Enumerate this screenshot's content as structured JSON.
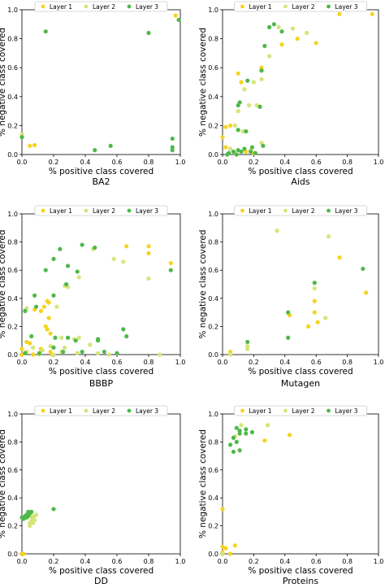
{
  "legend_labels": [
    "Layer 1",
    "Layer 2",
    "Layer 3"
  ],
  "colors": {
    "layer1": "#f5d31f",
    "layer2": "#d6e57a",
    "layer3": "#4fb84a",
    "axes": "#000000",
    "legend_border": "#cccccc"
  },
  "chart_data": [
    {
      "type": "scatter",
      "caption": "BA2",
      "xlabel": "% positive class covered",
      "ylabel": "% negative class covered",
      "xlim": [
        0,
        1
      ],
      "ylim": [
        0,
        1
      ],
      "xticks": [
        "0.0",
        "0.2",
        "0.4",
        "0.6",
        "0.8",
        "1.0"
      ],
      "yticks": [
        "0.0",
        "0.2",
        "0.4",
        "0.6",
        "0.8",
        "1.0"
      ],
      "legend": "top",
      "grid": false,
      "series": [
        {
          "name": "Layer 1",
          "points": [
            [
              0.97,
              0.96
            ],
            [
              0.05,
              0.06
            ],
            [
              0.08,
              0.065
            ]
          ]
        },
        {
          "name": "Layer 2",
          "points": [
            [
              0.0,
              0.14
            ]
          ]
        },
        {
          "name": "Layer 3",
          "points": [
            [
              0.15,
              0.85
            ],
            [
              0.8,
              0.84
            ],
            [
              0.99,
              0.93
            ],
            [
              0.0,
              0.12
            ],
            [
              0.56,
              0.06
            ],
            [
              0.46,
              0.03
            ],
            [
              0.95,
              0.11
            ],
            [
              0.95,
              0.05
            ],
            [
              0.95,
              0.03
            ]
          ]
        }
      ]
    },
    {
      "type": "scatter",
      "caption": "Aids",
      "xlabel": "% positive class covered",
      "ylabel": "% negative class covered",
      "xlim": [
        0,
        1
      ],
      "ylim": [
        0,
        1
      ],
      "xticks": [
        "0.0",
        "0.2",
        "0.4",
        "0.6",
        "0.8",
        "1.0"
      ],
      "yticks": [
        "0.0",
        "0.2",
        "0.4",
        "0.6",
        "0.8",
        "1.0"
      ],
      "legend": "top",
      "grid": false,
      "series": [
        {
          "name": "Layer 1",
          "points": [
            [
              0.96,
              0.97
            ],
            [
              0.75,
              0.97
            ],
            [
              0.6,
              0.77
            ],
            [
              0.48,
              0.8
            ],
            [
              0.38,
              0.76
            ],
            [
              0.25,
              0.6
            ],
            [
              0.1,
              0.56
            ],
            [
              0.12,
              0.5
            ],
            [
              0.05,
              0.2
            ],
            [
              0.02,
              0.19
            ],
            [
              0.0,
              0.12
            ],
            [
              0.02,
              0.05
            ],
            [
              0.03,
              0.0
            ],
            [
              0.09,
              0.0
            ],
            [
              0.15,
              0.02
            ],
            [
              0.2,
              0.01
            ]
          ]
        },
        {
          "name": "Layer 2",
          "points": [
            [
              0.54,
              0.84
            ],
            [
              0.45,
              0.87
            ],
            [
              0.36,
              0.88
            ],
            [
              0.3,
              0.68
            ],
            [
              0.25,
              0.52
            ],
            [
              0.2,
              0.5
            ],
            [
              0.14,
              0.45
            ],
            [
              0.22,
              0.34
            ],
            [
              0.17,
              0.34
            ],
            [
              0.1,
              0.3
            ],
            [
              0.08,
              0.2
            ],
            [
              0.13,
              0.16
            ],
            [
              0.25,
              0.08
            ],
            [
              0.05,
              0.04
            ],
            [
              0.18,
              0.03
            ]
          ]
        },
        {
          "name": "Layer 3",
          "points": [
            [
              0.33,
              0.9
            ],
            [
              0.3,
              0.88
            ],
            [
              0.38,
              0.85
            ],
            [
              0.27,
              0.75
            ],
            [
              0.25,
              0.58
            ],
            [
              0.16,
              0.51
            ],
            [
              0.11,
              0.36
            ],
            [
              0.1,
              0.34
            ],
            [
              0.24,
              0.33
            ],
            [
              0.1,
              0.17
            ],
            [
              0.15,
              0.16
            ],
            [
              0.26,
              0.06
            ],
            [
              0.19,
              0.05
            ],
            [
              0.14,
              0.04
            ],
            [
              0.1,
              0.03
            ],
            [
              0.12,
              0.02
            ],
            [
              0.07,
              0.02
            ],
            [
              0.04,
              0.01
            ],
            [
              0.18,
              0.02
            ],
            [
              0.21,
              0.01
            ],
            [
              0.09,
              0.0
            ],
            [
              0.03,
              0.0
            ]
          ]
        }
      ]
    },
    {
      "type": "scatter",
      "caption": "BBBP",
      "xlabel": "% positive class covered",
      "ylabel": "% negative class covered",
      "xlim": [
        0,
        1
      ],
      "ylim": [
        0,
        1
      ],
      "xticks": [
        "0.0",
        "0.2",
        "0.4",
        "0.6",
        "0.8",
        "1.0"
      ],
      "yticks": [
        "0.0",
        "0.2",
        "0.4",
        "0.6",
        "0.8",
        "1.0"
      ],
      "legend": "top",
      "grid": false,
      "series": [
        {
          "name": "Layer 1",
          "points": [
            [
              0.8,
              0.77
            ],
            [
              0.8,
              0.72
            ],
            [
              0.66,
              0.77
            ],
            [
              0.94,
              0.65
            ],
            [
              0.16,
              0.38
            ],
            [
              0.17,
              0.37
            ],
            [
              0.14,
              0.34
            ],
            [
              0.12,
              0.31
            ],
            [
              0.08,
              0.32
            ],
            [
              0.17,
              0.26
            ],
            [
              0.15,
              0.2
            ],
            [
              0.16,
              0.18
            ],
            [
              0.18,
              0.15
            ],
            [
              0.03,
              0.09
            ],
            [
              0.05,
              0.08
            ],
            [
              0.0,
              0.04
            ],
            [
              0.12,
              0.04
            ],
            [
              0.18,
              0.02
            ],
            [
              0.03,
              0.02
            ],
            [
              0.0,
              0.0
            ],
            [
              0.07,
              0.0
            ],
            [
              0.19,
              0.0
            ]
          ]
        },
        {
          "name": "Layer 2",
          "points": [
            [
              0.45,
              0.75
            ],
            [
              0.58,
              0.68
            ],
            [
              0.64,
              0.66
            ],
            [
              0.8,
              0.54
            ],
            [
              0.36,
              0.55
            ],
            [
              0.29,
              0.48
            ],
            [
              0.27,
              0.49
            ],
            [
              0.22,
              0.34
            ],
            [
              0.03,
              0.33
            ],
            [
              0.25,
              0.12
            ],
            [
              0.33,
              0.11
            ],
            [
              0.36,
              0.12
            ],
            [
              0.27,
              0.05
            ],
            [
              0.18,
              0.06
            ],
            [
              0.07,
              0.05
            ],
            [
              0.43,
              0.07
            ],
            [
              0.13,
              0.03
            ],
            [
              0.03,
              0.02
            ],
            [
              0.25,
              0.02
            ],
            [
              0.35,
              0.01
            ],
            [
              0.48,
              0.01
            ],
            [
              0.11,
              0.0
            ],
            [
              0.2,
              0.0
            ],
            [
              0.55,
              0.0
            ],
            [
              0.87,
              0.0
            ]
          ]
        },
        {
          "name": "Layer 3",
          "points": [
            [
              0.24,
              0.75
            ],
            [
              0.38,
              0.78
            ],
            [
              0.46,
              0.76
            ],
            [
              0.29,
              0.63
            ],
            [
              0.2,
              0.68
            ],
            [
              0.35,
              0.59
            ],
            [
              0.94,
              0.6
            ],
            [
              0.15,
              0.6
            ],
            [
              0.28,
              0.5
            ],
            [
              0.2,
              0.42
            ],
            [
              0.08,
              0.42
            ],
            [
              0.09,
              0.34
            ],
            [
              0.02,
              0.31
            ],
            [
              0.29,
              0.12
            ],
            [
              0.34,
              0.1
            ],
            [
              0.48,
              0.1
            ],
            [
              0.48,
              0.11
            ],
            [
              0.64,
              0.18
            ],
            [
              0.66,
              0.13
            ],
            [
              0.06,
              0.13
            ],
            [
              0.21,
              0.12
            ],
            [
              0.2,
              0.05
            ],
            [
              0.26,
              0.02
            ],
            [
              0.38,
              0.02
            ],
            [
              0.52,
              0.02
            ],
            [
              0.6,
              0.01
            ],
            [
              0.02,
              0.01
            ],
            [
              0.11,
              0.01
            ]
          ]
        }
      ]
    },
    {
      "type": "scatter",
      "caption": "Mutagen",
      "xlabel": "% positive class covered",
      "ylabel": "% negative class covered",
      "xlim": [
        0,
        1
      ],
      "ylim": [
        0,
        1
      ],
      "xticks": [
        "0.0",
        "0.2",
        "0.4",
        "0.6",
        "0.8",
        "1.0"
      ],
      "yticks": [
        "0.0",
        "0.2",
        "0.4",
        "0.6",
        "0.8",
        "1.0"
      ],
      "legend": "top",
      "grid": false,
      "series": [
        {
          "name": "Layer 1",
          "points": [
            [
              0.92,
              0.44
            ],
            [
              0.75,
              0.69
            ],
            [
              0.59,
              0.38
            ],
            [
              0.59,
              0.3
            ],
            [
              0.61,
              0.23
            ],
            [
              0.55,
              0.2
            ],
            [
              0.43,
              0.28
            ],
            [
              0.05,
              0.02
            ]
          ]
        },
        {
          "name": "Layer 2",
          "points": [
            [
              0.35,
              0.88
            ],
            [
              0.68,
              0.84
            ],
            [
              0.66,
              0.26
            ],
            [
              0.59,
              0.47
            ],
            [
              0.16,
              0.06
            ],
            [
              0.16,
              0.04
            ],
            [
              0.05,
              0.0
            ]
          ]
        },
        {
          "name": "Layer 3",
          "points": [
            [
              0.9,
              0.61
            ],
            [
              0.59,
              0.51
            ],
            [
              0.42,
              0.3
            ],
            [
              0.42,
              0.12
            ],
            [
              0.16,
              0.09
            ]
          ]
        }
      ]
    },
    {
      "type": "scatter",
      "caption": "DD",
      "xlabel": "% positive class covered",
      "ylabel": "% negative class covered",
      "xlim": [
        0,
        1
      ],
      "ylim": [
        0,
        1
      ],
      "xticks": [
        "0.0",
        "0.2",
        "0.4",
        "0.6",
        "0.8",
        "1.0"
      ],
      "yticks": [
        "0.0",
        "0.2",
        "0.4",
        "0.6",
        "0.8",
        "1.0"
      ],
      "legend": "top",
      "grid": false,
      "series": [
        {
          "name": "Layer 1",
          "points": [
            [
              0.0,
              0.0
            ],
            [
              0.01,
              0.0
            ]
          ]
        },
        {
          "name": "Layer 2",
          "points": [
            [
              0.09,
              0.28
            ],
            [
              0.08,
              0.27
            ],
            [
              0.07,
              0.25
            ],
            [
              0.06,
              0.24
            ],
            [
              0.05,
              0.22
            ],
            [
              0.05,
              0.2
            ],
            [
              0.07,
              0.22
            ],
            [
              0.08,
              0.24
            ],
            [
              0.06,
              0.27
            ]
          ]
        },
        {
          "name": "Layer 3",
          "points": [
            [
              0.0,
              0.26
            ],
            [
              0.02,
              0.27
            ],
            [
              0.03,
              0.28
            ],
            [
              0.04,
              0.3
            ],
            [
              0.05,
              0.29
            ],
            [
              0.03,
              0.26
            ],
            [
              0.01,
              0.25
            ],
            [
              0.2,
              0.32
            ],
            [
              0.04,
              0.27
            ],
            [
              0.06,
              0.3
            ]
          ]
        }
      ]
    },
    {
      "type": "scatter",
      "caption": "Proteins",
      "xlabel": "% positive class covered",
      "ylabel": "% negative class covered",
      "xlim": [
        0,
        1
      ],
      "ylim": [
        0,
        1
      ],
      "xticks": [
        "0.0",
        "0.2",
        "0.4",
        "0.6",
        "0.8",
        "1.0"
      ],
      "yticks": [
        "0.0",
        "0.2",
        "0.4",
        "0.6",
        "0.8",
        "1.0"
      ],
      "legend": "top",
      "grid": false,
      "series": [
        {
          "name": "Layer 1",
          "points": [
            [
              0.43,
              0.85
            ],
            [
              0.27,
              0.81
            ],
            [
              0.0,
              0.32
            ],
            [
              0.0,
              0.05
            ],
            [
              0.08,
              0.06
            ],
            [
              0.02,
              0.04
            ],
            [
              0.0,
              0.01
            ],
            [
              0.05,
              0.0
            ]
          ]
        },
        {
          "name": "Layer 2",
          "points": [
            [
              0.29,
              0.92
            ],
            [
              0.12,
              0.92
            ],
            [
              0.08,
              0.84
            ],
            [
              0.0,
              0.0
            ]
          ]
        },
        {
          "name": "Layer 3",
          "points": [
            [
              0.09,
              0.9
            ],
            [
              0.11,
              0.88
            ],
            [
              0.15,
              0.89
            ],
            [
              0.11,
              0.86
            ],
            [
              0.15,
              0.86
            ],
            [
              0.19,
              0.87
            ],
            [
              0.07,
              0.83
            ],
            [
              0.05,
              0.78
            ],
            [
              0.07,
              0.73
            ],
            [
              0.11,
              0.74
            ],
            [
              0.09,
              0.8
            ]
          ]
        }
      ]
    }
  ]
}
